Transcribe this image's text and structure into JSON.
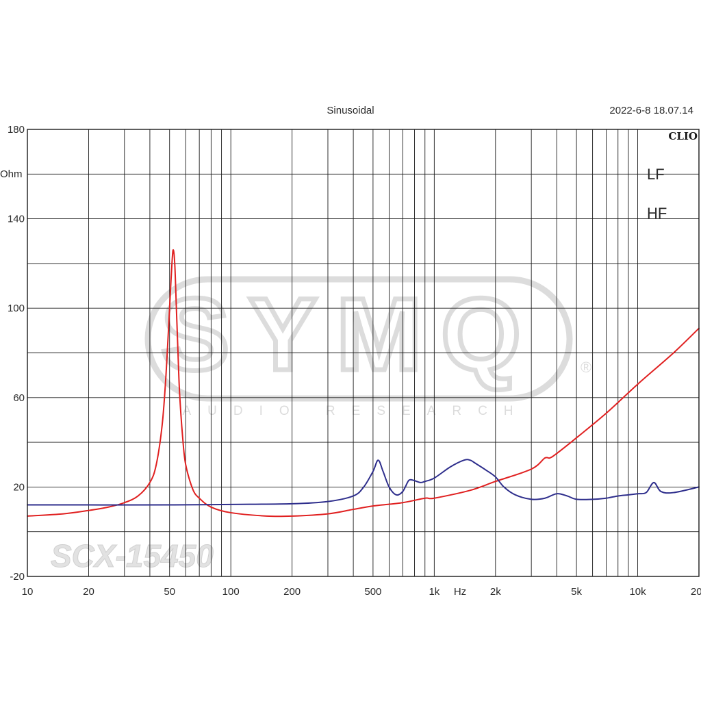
{
  "header": {
    "title": "Sinusoidal",
    "timestamp": "2022-6-8 18.07.14",
    "brand": "CLIO"
  },
  "watermark": {
    "logo_text": "SYMQ",
    "registered": "®",
    "tagline": "AUDIO RESEARCH",
    "model": "SCX-15450"
  },
  "colors": {
    "LF": "#e02020",
    "HF": "#2e2e8c",
    "grid": "#1a1a1a",
    "watermark": "#d9d9d9"
  },
  "chart_data": {
    "type": "line",
    "title": "Sinusoidal",
    "xlabel": "Hz",
    "ylabel": "Ohm",
    "xscale": "log",
    "xlim": [
      10,
      20000
    ],
    "ylim": [
      -20,
      180
    ],
    "grid": true,
    "legend_position": "top-right",
    "x_ticks": [
      {
        "value": 10,
        "label": "10"
      },
      {
        "value": 20,
        "label": "20"
      },
      {
        "value": 50,
        "label": "50"
      },
      {
        "value": 100,
        "label": "100"
      },
      {
        "value": 200,
        "label": "200"
      },
      {
        "value": 500,
        "label": "500"
      },
      {
        "value": 1000,
        "label": "1k"
      },
      {
        "value": 2000,
        "label": "2k"
      },
      {
        "value": 5000,
        "label": "5k"
      },
      {
        "value": 10000,
        "label": "10k"
      },
      {
        "value": 20000,
        "label": "20k"
      }
    ],
    "y_ticks": [
      {
        "value": 180,
        "label": "180"
      },
      {
        "value": 140,
        "label": "140"
      },
      {
        "value": 100,
        "label": "100"
      },
      {
        "value": 60,
        "label": "60"
      },
      {
        "value": 20,
        "label": "20"
      },
      {
        "value": -20,
        "label": "-20"
      }
    ],
    "series": [
      {
        "name": "LF",
        "x": [
          10,
          15,
          20,
          25,
          30,
          35,
          40,
          43,
          46,
          48,
          50,
          51,
          52,
          53,
          54,
          55,
          56,
          58,
          60,
          65,
          70,
          80,
          100,
          150,
          200,
          300,
          400,
          500,
          700,
          900,
          1000,
          1500,
          2000,
          3000,
          3500,
          3700,
          4000,
          5000,
          7000,
          10000,
          15000,
          20000
        ],
        "y": [
          7,
          8,
          9.5,
          11,
          13,
          16,
          22,
          30,
          48,
          70,
          100,
          115,
          126,
          120,
          100,
          80,
          62,
          42,
          30,
          19,
          15,
          11,
          8.5,
          7,
          7,
          8,
          10,
          11.5,
          13,
          15,
          15,
          18.5,
          22.5,
          28,
          33,
          33,
          35,
          42,
          53,
          66,
          80,
          91
        ]
      },
      {
        "name": "HF",
        "x": [
          10,
          50,
          100,
          200,
          300,
          400,
          450,
          500,
          530,
          560,
          600,
          650,
          700,
          750,
          790,
          820,
          860,
          900,
          1000,
          1200,
          1400,
          1500,
          1600,
          1800,
          2000,
          2200,
          2500,
          3000,
          3500,
          4000,
          4500,
          5000,
          6000,
          7000,
          8000,
          9000,
          10000,
          11000,
          12000,
          13000,
          15000,
          20000
        ],
        "y": [
          12,
          12,
          12.2,
          12.5,
          13.5,
          16,
          20,
          27,
          32,
          27,
          20,
          16.5,
          18,
          23,
          23,
          22.5,
          22,
          22.5,
          24,
          29,
          32,
          32,
          30.5,
          27.5,
          24.5,
          20,
          16.5,
          14.5,
          15,
          17,
          16,
          14.5,
          14.5,
          15,
          16,
          16.5,
          17,
          17.5,
          22,
          18,
          17.5,
          20
        ]
      }
    ]
  }
}
